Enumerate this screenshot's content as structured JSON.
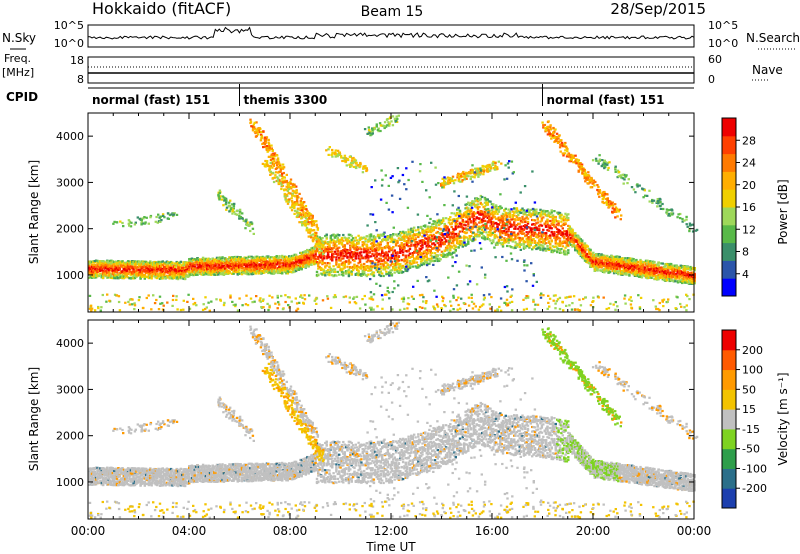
{
  "header": {
    "station": "Hokkaido (fitACF)",
    "beam": "Beam 15",
    "date": "28/Sep/2015"
  },
  "top_panels": {
    "nsky_label": "N.Sky",
    "nsearch_label": "N.Search",
    "noise_ticks": [
      "10^5",
      "10^0"
    ],
    "freq_label_1": "Freq.",
    "freq_label_2": "[MHz]",
    "freq_ticks": [
      "18",
      "8"
    ],
    "nave_label": "Nave",
    "nave_ticks": [
      "60",
      "0"
    ],
    "cpid_label": "CPID",
    "cpid_segments": [
      {
        "label": "normal (fast) 151",
        "start_hour": 0
      },
      {
        "label": "themis 3300",
        "start_hour": 6
      },
      {
        "label": "normal (fast) 151",
        "start_hour": 18
      }
    ]
  },
  "chart_data": [
    {
      "type": "heatmap",
      "name": "power",
      "ylabel": "Slant Range [km]",
      "xlim_hours": [
        0,
        24
      ],
      "ylim": [
        200,
        4500
      ],
      "yticks": [
        "1000",
        "2000",
        "3000",
        "4000"
      ],
      "colorbar_label": "Power [dB]",
      "colorbar_ticks": [
        "28",
        "24",
        "20",
        "16",
        "12",
        "8",
        "4"
      ],
      "colorbar_colors": [
        "#0000ff",
        "#2b55aa",
        "#3a8f6a",
        "#58b948",
        "#9ed85a",
        "#f0d000",
        "#ffae00",
        "#ff7a00",
        "#ff4000",
        "#ee0000"
      ],
      "scatter_bands": [
        {
          "from_hour": 0,
          "to_hour": 4,
          "range_km": 1150,
          "level": 0.85
        },
        {
          "from_hour": 4,
          "to_hour": 9,
          "range_km": 1200,
          "level": 0.85
        },
        {
          "from_hour": 9,
          "to_hour": 14,
          "range_km": 1450,
          "level": 0.8
        },
        {
          "from_hour": 14,
          "to_hour": 18,
          "range_km": 2100,
          "level": 0.75
        },
        {
          "from_hour": 18,
          "to_hour": 24,
          "range_km": 1200,
          "level": 0.8
        }
      ]
    },
    {
      "type": "heatmap",
      "name": "velocity",
      "ylabel": "Slant Range [km]",
      "xlabel": "Time UT",
      "xlim_hours": [
        0,
        24
      ],
      "ylim": [
        200,
        4500
      ],
      "xticks": [
        "00:00",
        "04:00",
        "08:00",
        "12:00",
        "16:00",
        "20:00",
        "00:00"
      ],
      "yticks": [
        "1000",
        "2000",
        "3000",
        "4000"
      ],
      "colorbar_label": "Velocity [m s⁻¹]",
      "colorbar_ticks": [
        "200",
        "100",
        "50",
        "15",
        "-15",
        "-50",
        "-100",
        "-200"
      ],
      "colorbar_colors": [
        "#ee0000",
        "#ff5a00",
        "#ff9a00",
        "#f3c300",
        "#c0c0c0",
        "#7ed321",
        "#2e9e4b",
        "#2b6f8a",
        "#1c3fae"
      ],
      "dominant_color": "#c0c0c0"
    }
  ]
}
